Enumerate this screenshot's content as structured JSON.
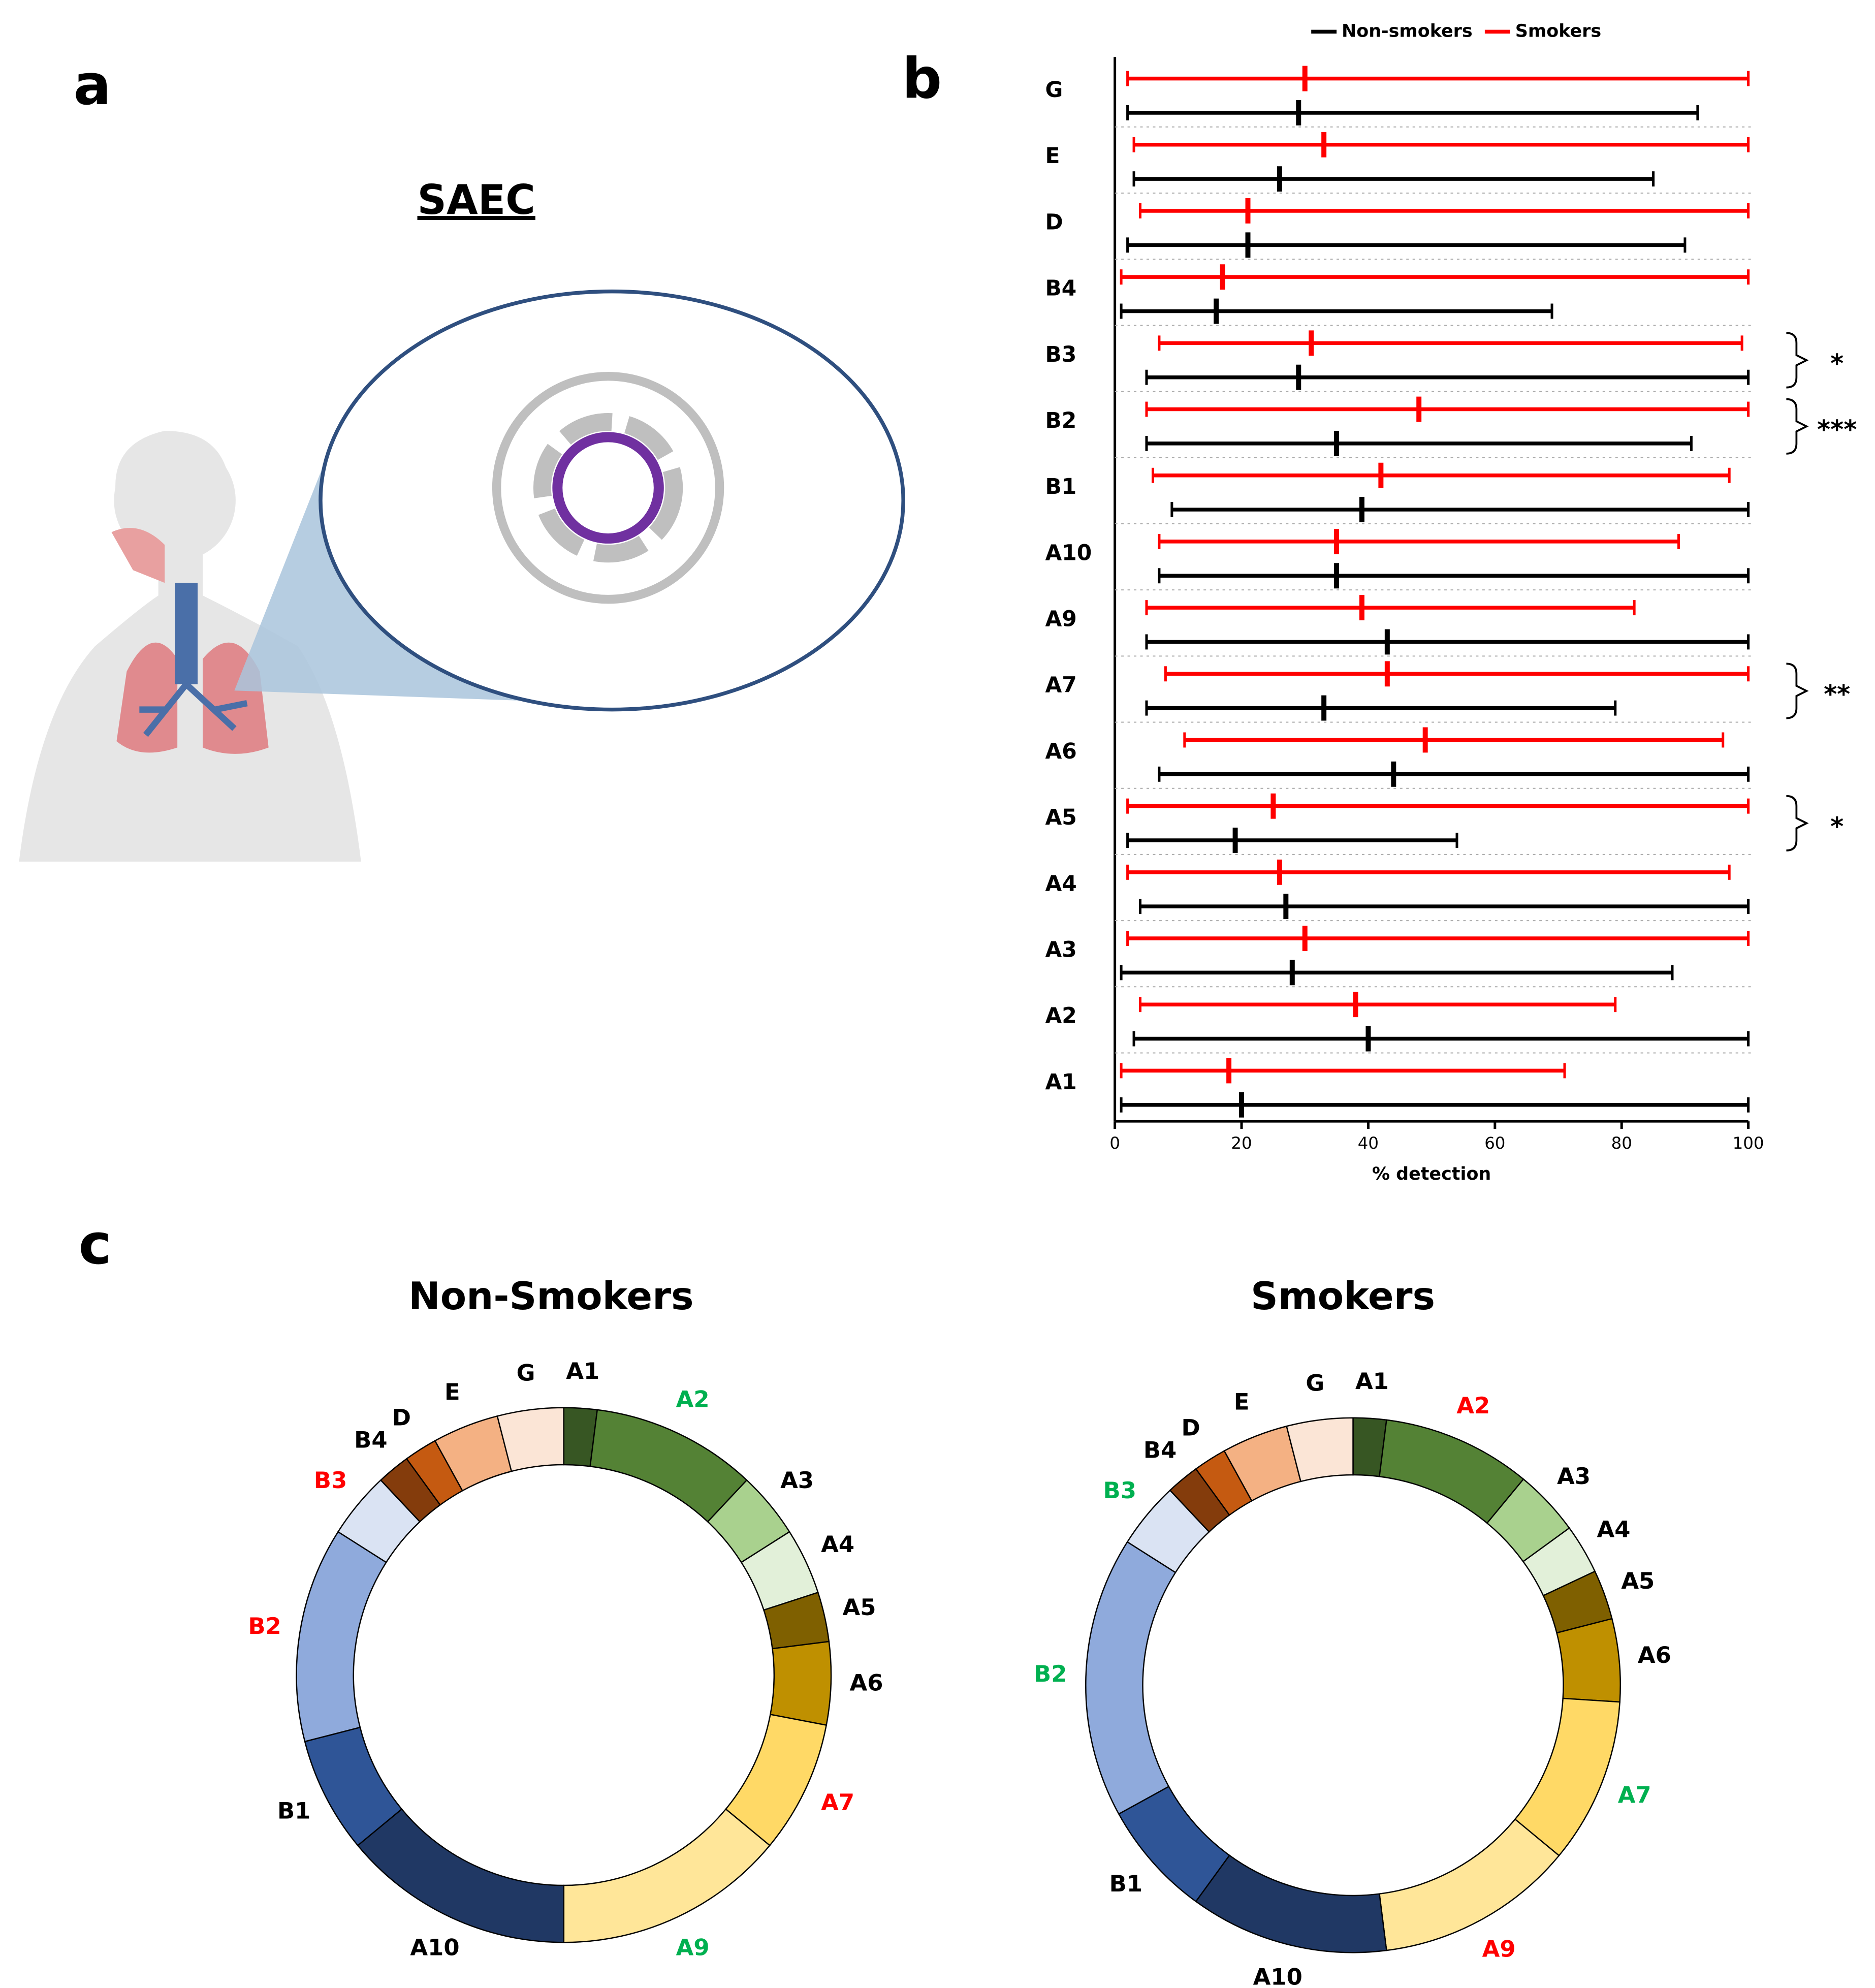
{
  "panel_labels": [
    "a",
    "b",
    "c"
  ],
  "illustration": {
    "label": "SAEC"
  },
  "chart_data": [
    {
      "type": "range",
      "categories": [
        "G",
        "E",
        "D",
        "B4",
        "B3",
        "B2",
        "B1",
        "A10",
        "A9",
        "A7",
        "A6",
        "A5",
        "A4",
        "A3",
        "A2",
        "A1"
      ],
      "series": [
        {
          "name": "Non-smokers",
          "color": "#000000",
          "min": [
            2,
            3,
            2,
            1,
            5,
            5,
            9,
            7,
            5,
            5,
            7,
            2,
            4,
            1,
            3,
            1
          ],
          "median": [
            29,
            26,
            21,
            16,
            29,
            35,
            39,
            35,
            43,
            33,
            44,
            19,
            27,
            28,
            40,
            20
          ],
          "max": [
            92,
            85,
            90,
            69,
            100,
            91,
            100,
            100,
            100,
            79,
            100,
            54,
            100,
            88,
            100,
            100
          ]
        },
        {
          "name": "Smokers",
          "color": "#ff0000",
          "min": [
            2,
            3,
            4,
            1,
            7,
            5,
            6,
            7,
            5,
            8,
            11,
            2,
            2,
            2,
            4,
            1
          ],
          "median": [
            30,
            33,
            21,
            17,
            31,
            48,
            42,
            35,
            39,
            43,
            49,
            25,
            26,
            30,
            38,
            18
          ],
          "max": [
            100,
            100,
            100,
            100,
            99,
            100,
            97,
            89,
            82,
            100,
            96,
            100,
            97,
            100,
            79,
            71
          ]
        }
      ],
      "significance": [
        null,
        null,
        null,
        null,
        "*",
        "***",
        null,
        null,
        null,
        "**",
        null,
        "*",
        null,
        null,
        null,
        null
      ],
      "xlabel": "% detection",
      "xlim": [
        0,
        100
      ],
      "xticks": [
        0,
        20,
        40,
        60,
        80,
        100
      ],
      "legend": "top"
    },
    {
      "type": "donut",
      "title": "Non-Smokers",
      "categories": [
        "A1",
        "A2",
        "A3",
        "A4",
        "A5",
        "A6",
        "A7",
        "A9",
        "A10",
        "B1",
        "B2",
        "B3",
        "B4",
        "D",
        "E",
        "G"
      ],
      "values": [
        2,
        10,
        4,
        4,
        3,
        5,
        8,
        14,
        14,
        7,
        13,
        4,
        2,
        2,
        4,
        4
      ],
      "colors": [
        "#375623",
        "#548235",
        "#a9d18e",
        "#e2f0d9",
        "#7f6000",
        "#bf9000",
        "#ffd966",
        "#ffe699",
        "#203864",
        "#2f5597",
        "#8faadc",
        "#dae3f3",
        "#843c0c",
        "#c55a11",
        "#f4b183",
        "#fbe5d6"
      ],
      "label_colors": [
        "#000000",
        "#00b050",
        "#000000",
        "#000000",
        "#000000",
        "#000000",
        "#ff0000",
        "#00b050",
        "#000000",
        "#000000",
        "#ff0000",
        "#ff0000",
        "#000000",
        "#000000",
        "#000000",
        "#000000"
      ]
    },
    {
      "type": "donut",
      "title": "Smokers",
      "categories": [
        "A1",
        "A2",
        "A3",
        "A4",
        "A5",
        "A6",
        "A7",
        "A9",
        "A10",
        "B1",
        "B2",
        "B3",
        "B4",
        "D",
        "E",
        "G"
      ],
      "values": [
        2,
        9,
        4,
        3,
        3,
        5,
        10,
        12,
        12,
        7,
        17,
        4,
        2,
        2,
        4,
        4
      ],
      "colors": [
        "#375623",
        "#548235",
        "#a9d18e",
        "#e2f0d9",
        "#7f6000",
        "#bf9000",
        "#ffd966",
        "#ffe699",
        "#203864",
        "#2f5597",
        "#8faadc",
        "#dae3f3",
        "#843c0c",
        "#c55a11",
        "#f4b183",
        "#fbe5d6"
      ],
      "label_colors": [
        "#000000",
        "#ff0000",
        "#000000",
        "#000000",
        "#000000",
        "#000000",
        "#00b050",
        "#ff0000",
        "#000000",
        "#000000",
        "#00b050",
        "#00b050",
        "#000000",
        "#000000",
        "#000000",
        "#000000"
      ]
    }
  ]
}
